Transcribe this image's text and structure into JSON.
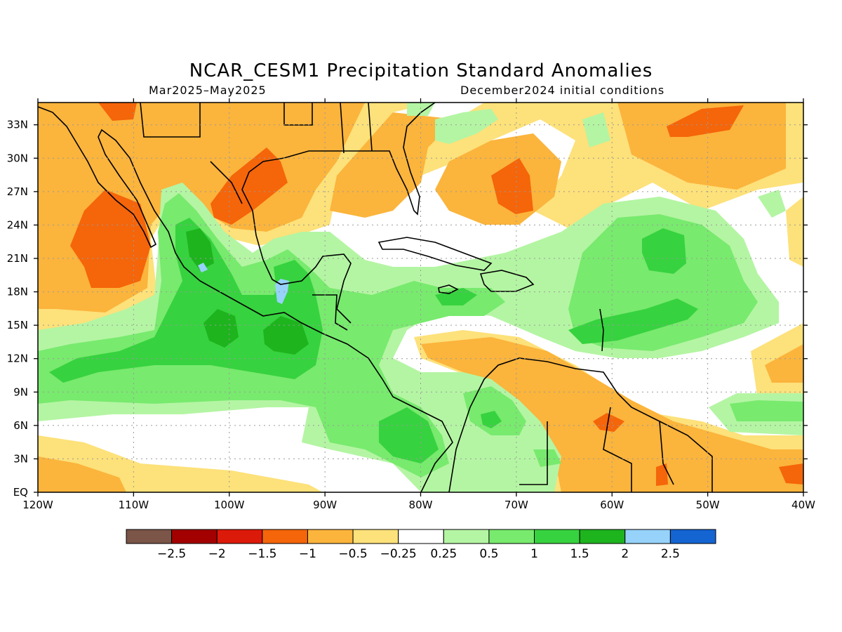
{
  "title": "NCAR_CESM1 Precipitation Standard Anomalies",
  "period": "Mar2025–May2025",
  "init": "December2024 initial conditions",
  "lon_labels": [
    "120W",
    "110W",
    "100W",
    "90W",
    "80W",
    "70W",
    "60W",
    "50W",
    "40W"
  ],
  "lat_labels": [
    "EQ",
    "3N",
    "6N",
    "9N",
    "12N",
    "15N",
    "18N",
    "21N",
    "24N",
    "27N",
    "30N",
    "33N"
  ],
  "lon_range": [
    -120,
    -40
  ],
  "lat_range": [
    0,
    35
  ],
  "colorbar": {
    "colors": [
      "#7a5548",
      "#a30000",
      "#dc1a0a",
      "#f5650a",
      "#fbb43c",
      "#fde17a",
      "#ffffff",
      "#b4f5a3",
      "#78ea6e",
      "#37d23f",
      "#1eb41e",
      "#96d2fa",
      "#1464d2"
    ],
    "labels": [
      "−2.5",
      "−2",
      "−1.5",
      "−1",
      "−0.5",
      "−0.25",
      "0.25",
      "0.5",
      "1",
      "1.5",
      "2",
      "2.5"
    ]
  },
  "palette": {
    "orange_light": "#fde17a",
    "orange": "#fbb43c",
    "orange_dark": "#f5650a",
    "green_light": "#b4f5a3",
    "green": "#78ea6e",
    "green_mid": "#37d23f",
    "green_dark": "#1eb41e",
    "blue_light": "#96d2fa"
  }
}
